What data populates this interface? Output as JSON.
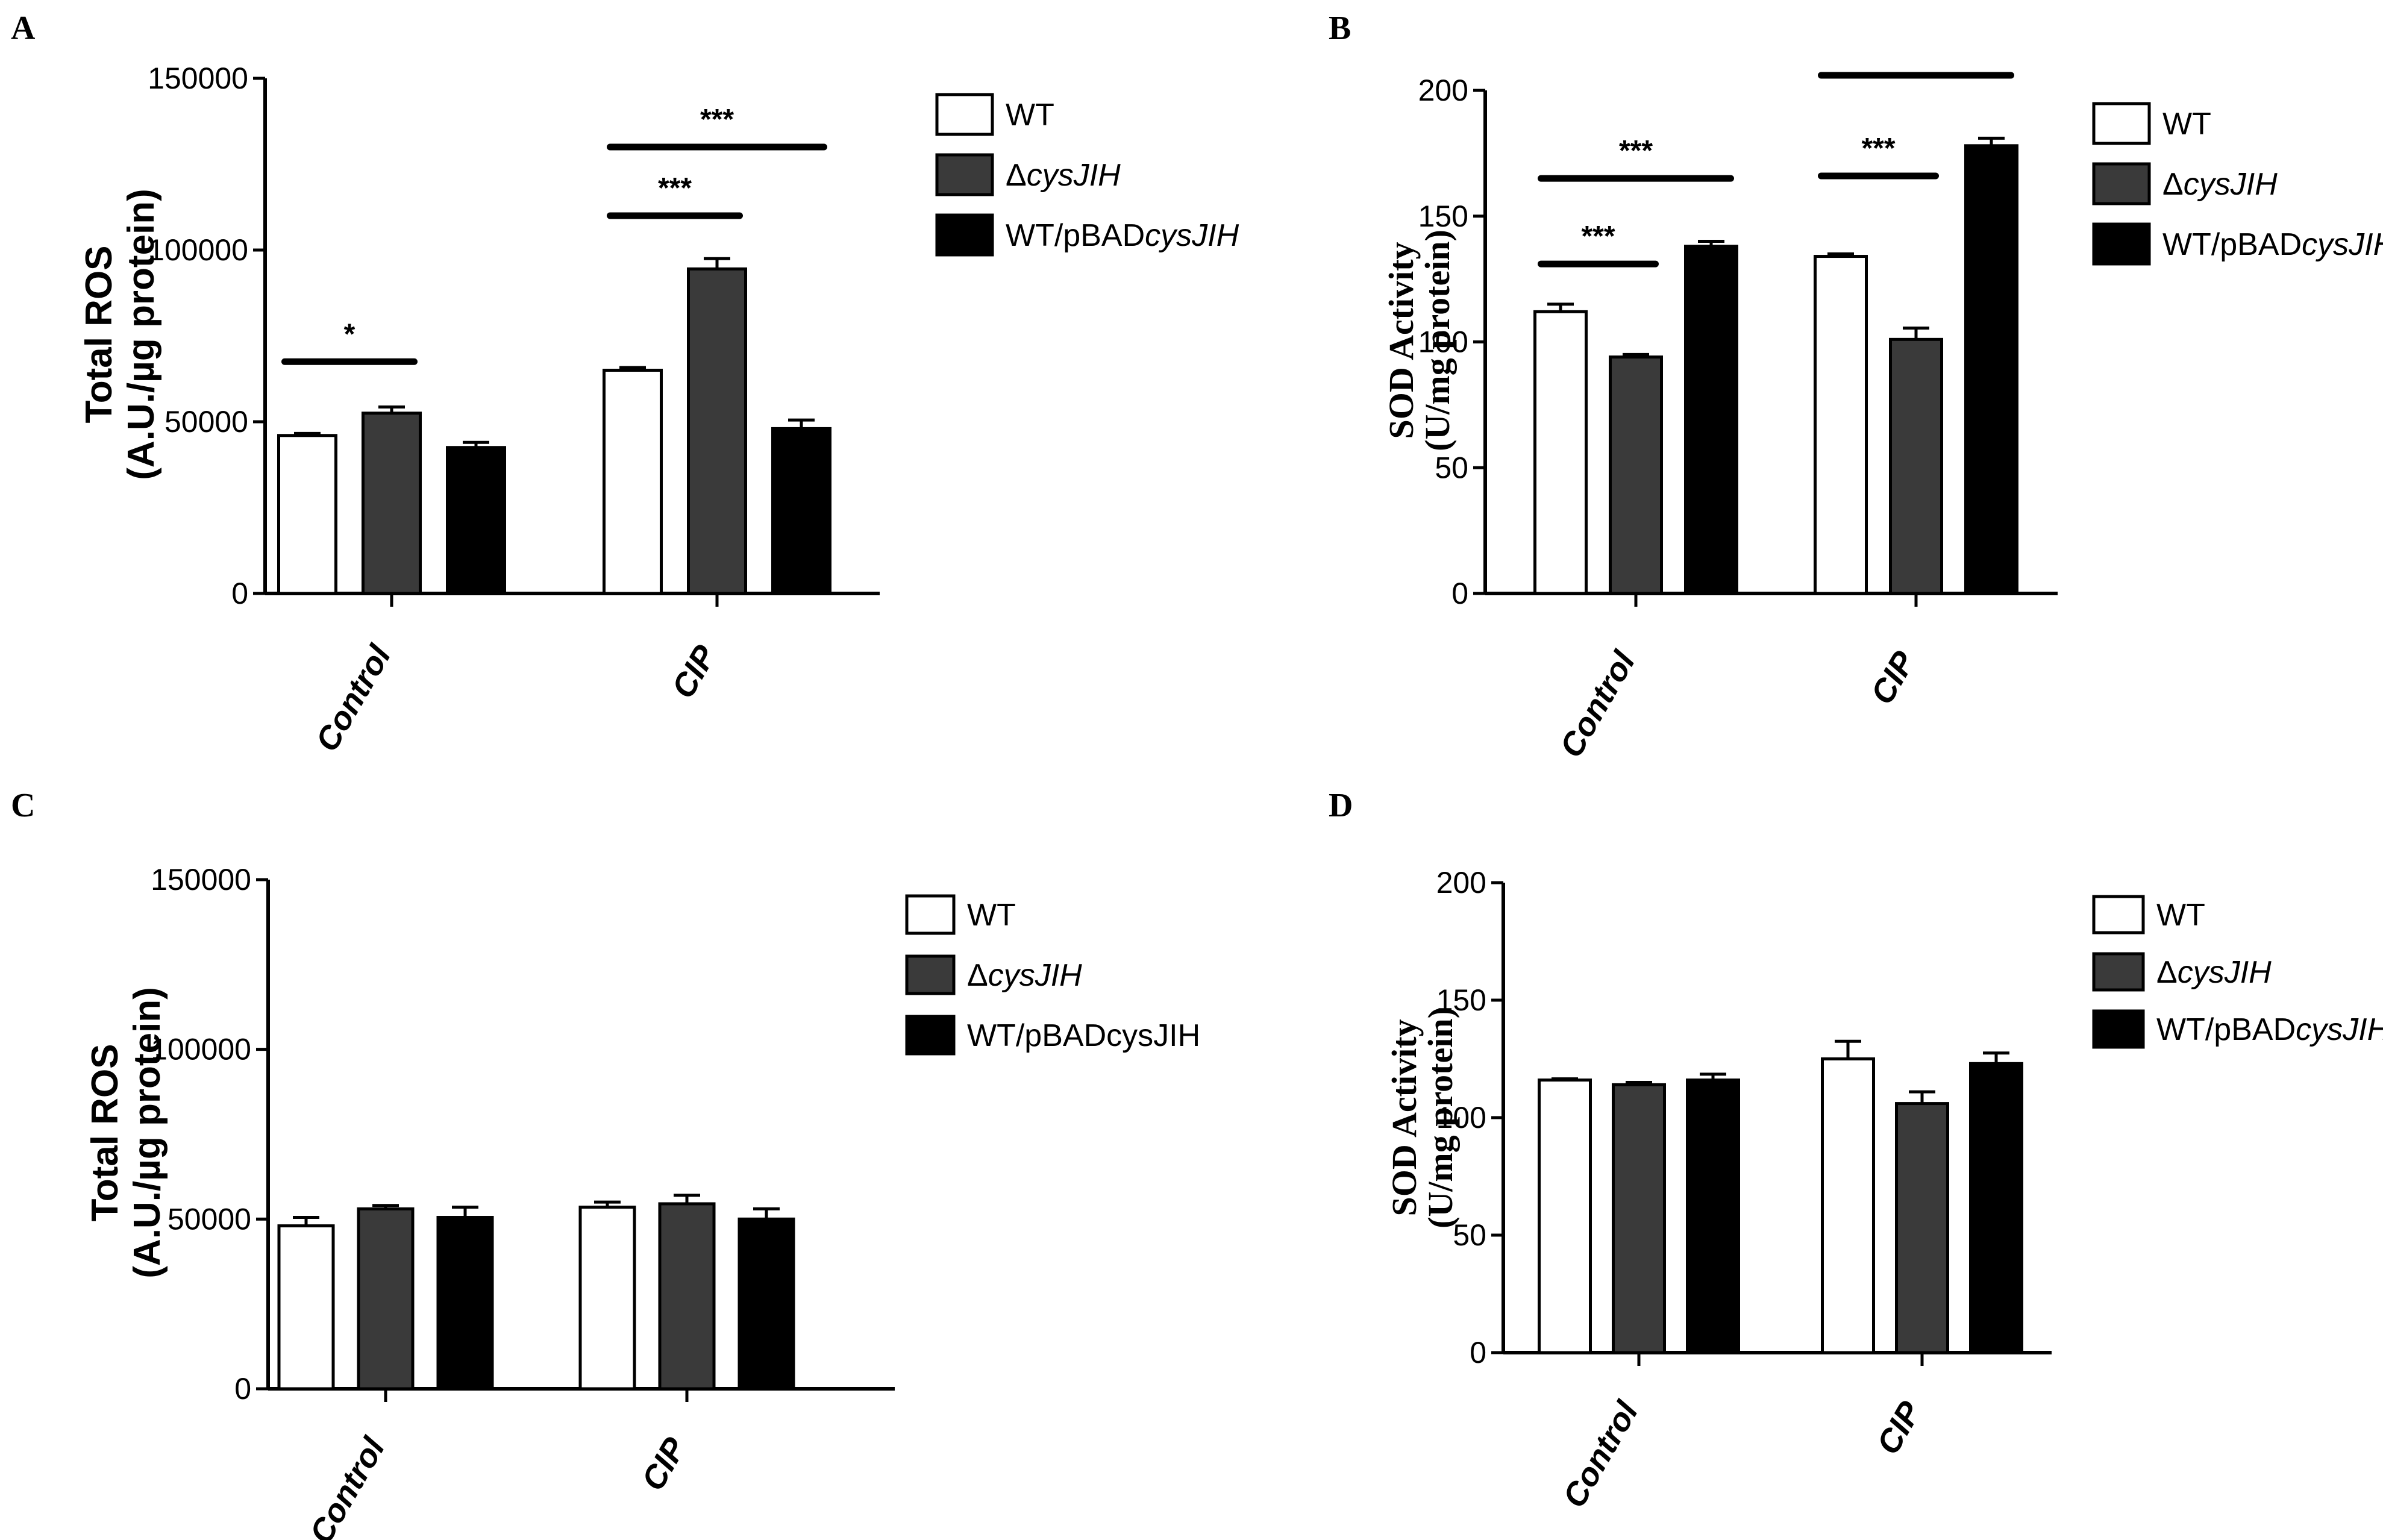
{
  "colors": {
    "wt": "#ffffff",
    "delta": "#3a3a3a",
    "over": "#000000",
    "stroke": "#000000"
  },
  "chart_data": [
    {
      "panel": "A",
      "type": "bar",
      "title": "",
      "ylabel_lines": [
        "Total ROS",
        "(A.U./µg protein)"
      ],
      "ylabel_font": "sans",
      "categories": [
        "Control",
        "CIP"
      ],
      "ylim": [
        0,
        150000
      ],
      "yticks": [
        0,
        50000,
        100000,
        150000
      ],
      "ytick_labels": [
        "0",
        "50000",
        "100000",
        "150000"
      ],
      "series": [
        {
          "name": "WT",
          "legend_plain": "WT",
          "legend_italic": "",
          "color_key": "wt",
          "values": [
            46000,
            65000
          ],
          "errors": [
            600,
            800
          ]
        },
        {
          "name": "ΔcysJIH",
          "legend_plain": "Δ",
          "legend_italic": "cysJIH",
          "color_key": "delta",
          "values": [
            52500,
            94500
          ],
          "errors": [
            1800,
            3000
          ]
        },
        {
          "name": "WT/pBADcysJIH",
          "legend_plain": "WT/pBAD",
          "legend_italic": "cysJIH",
          "color_key": "over",
          "values": [
            42500,
            48000
          ],
          "errors": [
            1500,
            2500
          ]
        }
      ],
      "annotations": [
        {
          "text": "*",
          "cat": 0,
          "from": 0,
          "to": 1,
          "y": 67500
        },
        {
          "text": "***",
          "cat": 1,
          "from": 0,
          "to": 1,
          "y": 110000
        },
        {
          "text": "***",
          "cat": 1,
          "from": 0,
          "to": 2,
          "y": 130000
        }
      ]
    },
    {
      "panel": "B",
      "type": "bar",
      "title": "",
      "ylabel_lines": [
        "SOD Activity",
        "(U/mg protein)"
      ],
      "ylabel_font": "serif",
      "categories": [
        "Control",
        "CIP"
      ],
      "ylim": [
        0,
        200
      ],
      "yticks": [
        0,
        50,
        100,
        150,
        200
      ],
      "ytick_labels": [
        "0",
        "50",
        "100",
        "150",
        "200"
      ],
      "series": [
        {
          "name": "WT",
          "legend_plain": "WT",
          "legend_italic": "",
          "color_key": "wt",
          "values": [
            112,
            134
          ],
          "errors": [
            3,
            1
          ]
        },
        {
          "name": "ΔcysJIH",
          "legend_plain": "Δ",
          "legend_italic": "cysJIH",
          "color_key": "delta",
          "values": [
            94,
            101
          ],
          "errors": [
            1,
            4.5
          ]
        },
        {
          "name": "WT/pBADcysJIH",
          "legend_plain": "WT/pBAD",
          "legend_italic": "cysJIH",
          "color_key": "over",
          "values": [
            138,
            178
          ],
          "errors": [
            2,
            3
          ]
        }
      ],
      "annotations": [
        {
          "text": "***",
          "cat": 0,
          "from": 0,
          "to": 1,
          "y": 131
        },
        {
          "text": "***",
          "cat": 0,
          "from": 0,
          "to": 2,
          "y": 165
        },
        {
          "text": "***",
          "cat": 1,
          "from": 0,
          "to": 1,
          "y": 166
        },
        {
          "text": "",
          "cat": 1,
          "from": 0,
          "to": 2,
          "y": 206
        }
      ]
    },
    {
      "panel": "C",
      "type": "bar",
      "title": "",
      "ylabel_lines": [
        "Total ROS",
        "(A.U./µg protein)"
      ],
      "ylabel_font": "sans",
      "categories": [
        "Control",
        "CIP"
      ],
      "ylim": [
        0,
        150000
      ],
      "yticks": [
        0,
        50000,
        100000,
        150000
      ],
      "ytick_labels": [
        "0",
        "50000",
        "100000",
        "150000"
      ],
      "series": [
        {
          "name": "WT",
          "legend_plain": "WT",
          "legend_italic": "",
          "color_key": "wt",
          "values": [
            48000,
            53500
          ],
          "errors": [
            2500,
            1500
          ]
        },
        {
          "name": "ΔcysJIH",
          "legend_plain": "Δ",
          "legend_italic": "cysJIH",
          "color_key": "delta",
          "values": [
            53000,
            54500
          ],
          "errors": [
            1000,
            2500
          ]
        },
        {
          "name": "WT/pBADcysJIH",
          "legend_plain": "WT/pBADcysJIH",
          "legend_italic": "",
          "color_key": "over",
          "values": [
            50500,
            50000
          ],
          "errors": [
            3000,
            3000
          ]
        }
      ],
      "annotations": []
    },
    {
      "panel": "D",
      "type": "bar",
      "title": "",
      "ylabel_lines": [
        "SOD Activity",
        "(U/mg protein)"
      ],
      "ylabel_font": "serif",
      "categories": [
        "Control",
        "CIP"
      ],
      "ylim": [
        0,
        200
      ],
      "yticks": [
        0,
        50,
        100,
        150,
        200
      ],
      "ytick_labels": [
        "0",
        "50",
        "100",
        "150",
        "200"
      ],
      "series": [
        {
          "name": "WT",
          "legend_plain": "WT",
          "legend_italic": "",
          "color_key": "wt",
          "values": [
            116,
            125
          ],
          "errors": [
            0.5,
            7.5
          ]
        },
        {
          "name": "ΔcysJIH",
          "legend_plain": "Δ",
          "legend_italic": "cysJIH",
          "color_key": "delta",
          "values": [
            114,
            106
          ],
          "errors": [
            1,
            5
          ]
        },
        {
          "name": "WT/pBADcysJIH",
          "legend_plain": "WT/pBAD",
          "legend_italic": "cysJIH",
          "color_key": "over",
          "values": [
            116,
            123
          ],
          "errors": [
            2.5,
            4.5
          ]
        }
      ],
      "annotations": []
    }
  ]
}
